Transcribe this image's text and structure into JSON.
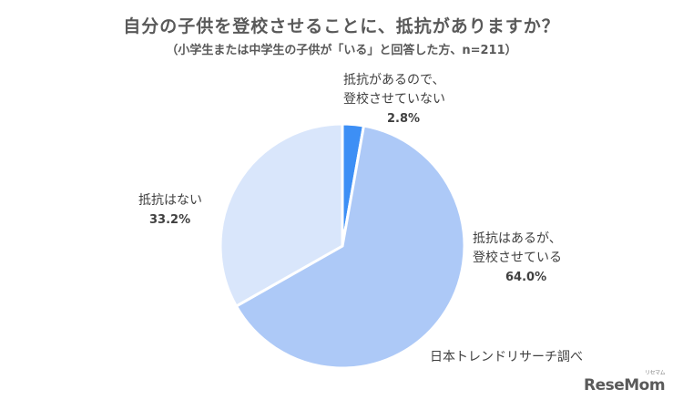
{
  "chart_data": {
    "type": "pie",
    "title": "自分の子供を登校させることに、抵抗がありますか？",
    "subtitle": "（小学生または中学生の子供が「いる」と回答した方、n=211）",
    "slices": [
      {
        "lines": [
          "抵抗があるので、",
          "登校させていない"
        ],
        "value": 2.8,
        "value_label": "2.8%",
        "color": "#3d8ff5"
      },
      {
        "lines": [
          "抵抗はあるが、",
          "登校させている"
        ],
        "value": 64.0,
        "value_label": "64.0%",
        "color": "#adc9f7"
      },
      {
        "lines": [
          "抵抗はない"
        ],
        "value": 33.2,
        "value_label": "33.2%",
        "color": "#d9e6fb"
      }
    ],
    "legend": "none"
  },
  "source": "日本トレンドリサーチ調べ",
  "logo": {
    "text": "ReseMom",
    "kana": "リセマム"
  }
}
